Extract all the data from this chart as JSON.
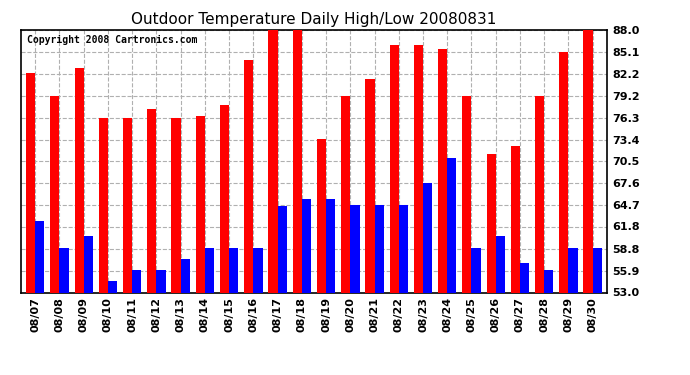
{
  "title": "Outdoor Temperature Daily High/Low 20080831",
  "copyright": "Copyright 2008 Cartronics.com",
  "dates": [
    "08/07",
    "08/08",
    "08/09",
    "08/10",
    "08/11",
    "08/12",
    "08/13",
    "08/14",
    "08/15",
    "08/16",
    "08/17",
    "08/18",
    "08/19",
    "08/20",
    "08/21",
    "08/22",
    "08/23",
    "08/24",
    "08/25",
    "08/26",
    "08/27",
    "08/28",
    "08/29",
    "08/30"
  ],
  "highs": [
    82.2,
    79.2,
    83.0,
    76.3,
    76.3,
    77.5,
    76.3,
    76.5,
    78.0,
    84.0,
    88.0,
    88.0,
    73.4,
    79.2,
    81.5,
    86.0,
    86.0,
    85.5,
    79.2,
    71.5,
    72.5,
    79.2,
    85.1,
    88.0
  ],
  "lows": [
    62.5,
    59.0,
    60.5,
    54.5,
    56.0,
    56.0,
    57.5,
    59.0,
    59.0,
    59.0,
    64.5,
    65.5,
    65.5,
    64.7,
    64.7,
    64.7,
    67.6,
    71.0,
    59.0,
    60.5,
    57.0,
    56.0,
    59.0,
    59.0
  ],
  "yticks": [
    53.0,
    55.9,
    58.8,
    61.8,
    64.7,
    67.6,
    70.5,
    73.4,
    76.3,
    79.2,
    82.2,
    85.1,
    88.0
  ],
  "ymin": 53.0,
  "ymax": 88.0,
  "high_color": "#ff0000",
  "low_color": "#0000ff",
  "bg_color": "#ffffff",
  "grid_color": "#b0b0b0",
  "title_fontsize": 11,
  "copyright_fontsize": 7,
  "tick_fontsize": 8
}
